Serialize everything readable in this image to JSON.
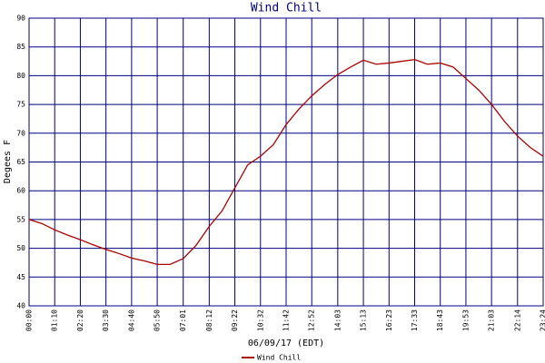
{
  "chart_data": {
    "type": "line",
    "title": "Wind Chill",
    "x_label": "06/09/17 (EDT)",
    "y_label": "Degees F",
    "x": [
      0,
      35,
      70,
      105,
      140,
      175,
      210,
      245,
      280,
      315,
      350,
      385,
      421,
      456,
      492,
      527,
      562,
      597,
      632,
      667,
      702,
      737,
      772,
      808,
      843,
      878,
      913,
      948,
      983,
      1018,
      1053,
      1088,
      1123,
      1158,
      1193,
      1228,
      1263,
      1299,
      1334,
      1369,
      1404
    ],
    "series": [
      {
        "name": "Wind Chill",
        "color": "#aa0000",
        "values": [
          55,
          54.3,
          53.2,
          52.3,
          51.5,
          50.6,
          49.8,
          49.1,
          48.3,
          47.8,
          47.2,
          47.2,
          48.2,
          50.5,
          53.8,
          56.5,
          60.5,
          64.5,
          66,
          68,
          71.5,
          74.2,
          76.5,
          78.5,
          80.2,
          81.5,
          82.7,
          82,
          82.2,
          82.5,
          82.8,
          82,
          82.2,
          81.5,
          79.5,
          77.5,
          75,
          72,
          69.5,
          67.5,
          66
        ]
      }
    ],
    "xlim": [
      0,
      1404
    ],
    "xticks": [
      {
        "value": 0,
        "label": "00:00"
      },
      {
        "value": 70,
        "label": "01:10"
      },
      {
        "value": 140,
        "label": "02:20"
      },
      {
        "value": 210,
        "label": "03:30"
      },
      {
        "value": 280,
        "label": "04:40"
      },
      {
        "value": 350,
        "label": "05:50"
      },
      {
        "value": 421,
        "label": "07:01"
      },
      {
        "value": 492,
        "label": "08:12"
      },
      {
        "value": 562,
        "label": "09:22"
      },
      {
        "value": 632,
        "label": "10:32"
      },
      {
        "value": 702,
        "label": "11:42"
      },
      {
        "value": 772,
        "label": "12:52"
      },
      {
        "value": 843,
        "label": "14:03"
      },
      {
        "value": 913,
        "label": "15:13"
      },
      {
        "value": 983,
        "label": "16:23"
      },
      {
        "value": 1053,
        "label": "17:33"
      },
      {
        "value": 1123,
        "label": "18:43"
      },
      {
        "value": 1193,
        "label": "19:53"
      },
      {
        "value": 1263,
        "label": "21:03"
      },
      {
        "value": 1334,
        "label": "22:14"
      },
      {
        "value": 1404,
        "label": "23:24"
      }
    ],
    "ylim": [
      40,
      90
    ],
    "yticks": [
      40,
      45,
      50,
      55,
      60,
      65,
      70,
      75,
      80,
      85,
      90
    ],
    "grid": true,
    "grid_color": "#000080"
  }
}
